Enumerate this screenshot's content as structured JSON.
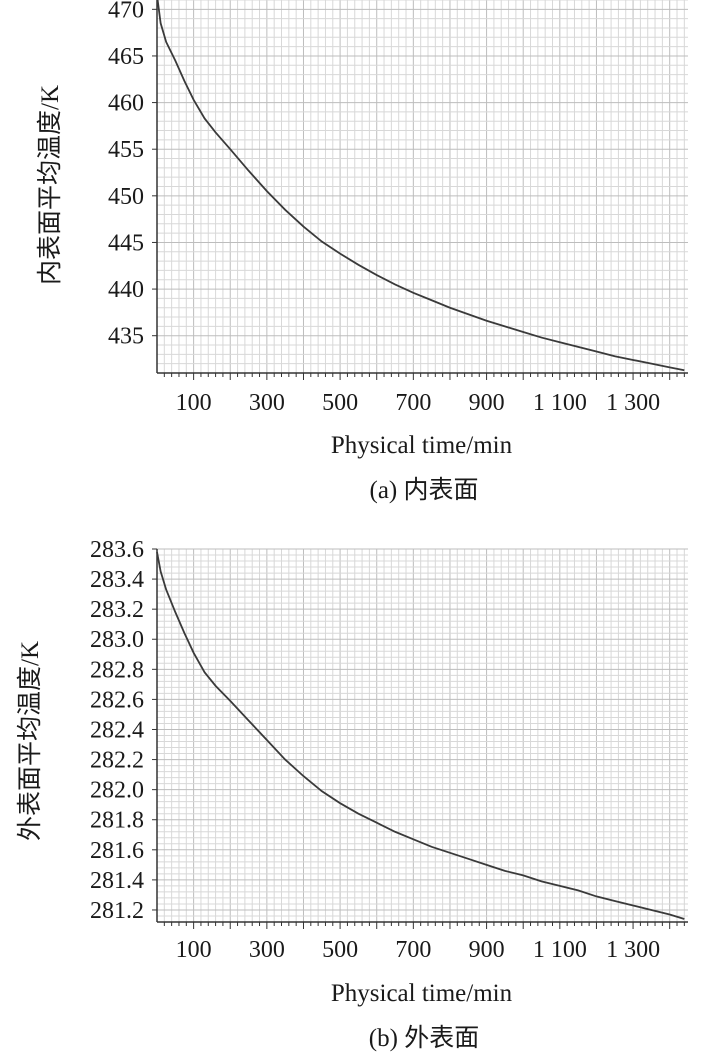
{
  "chart_data": [
    {
      "type": "line",
      "caption": "(a) 内表面",
      "xlabel": "Physical time/min",
      "ylabel": "内表面平均温度/K",
      "xlim": [
        0,
        1450
      ],
      "ylim": [
        431,
        471
      ],
      "x_ticks": [
        100,
        300,
        500,
        700,
        900,
        1100,
        1300
      ],
      "x_tick_labels": [
        "100",
        "300",
        "500",
        "700",
        "900",
        "1 100",
        "1 300"
      ],
      "y_ticks": [
        435,
        440,
        445,
        450,
        455,
        460,
        465,
        470
      ],
      "y_tick_labels": [
        "435",
        "440",
        "445",
        "450",
        "455",
        "460",
        "465",
        "470"
      ],
      "grid": true,
      "series": [
        {
          "x": [
            0,
            10,
            25,
            50,
            75,
            100,
            130,
            160,
            200,
            250,
            300,
            350,
            400,
            450,
            500,
            550,
            600,
            650,
            700,
            750,
            800,
            850,
            900,
            950,
            1000,
            1050,
            1100,
            1150,
            1200,
            1250,
            1300,
            1350,
            1400,
            1440
          ],
          "y": [
            471.5,
            468.5,
            466.5,
            464.5,
            462.3,
            460.3,
            458.3,
            456.8,
            455.0,
            452.7,
            450.5,
            448.5,
            446.7,
            445.1,
            443.8,
            442.6,
            441.5,
            440.5,
            439.6,
            438.8,
            438.0,
            437.3,
            436.6,
            436.0,
            435.4,
            434.8,
            434.3,
            433.8,
            433.3,
            432.8,
            432.4,
            432.0,
            431.6,
            431.3
          ]
        }
      ]
    },
    {
      "type": "line",
      "caption": "(b) 外表面",
      "xlabel": "Physical time/min",
      "ylabel": "外表面平均温度/K",
      "xlim": [
        0,
        1450
      ],
      "ylim": [
        281.12,
        283.6
      ],
      "x_ticks": [
        100,
        300,
        500,
        700,
        900,
        1100,
        1300
      ],
      "x_tick_labels": [
        "100",
        "300",
        "500",
        "700",
        "900",
        "1 100",
        "1 300"
      ],
      "y_ticks": [
        281.2,
        281.4,
        281.6,
        281.8,
        282.0,
        282.2,
        282.4,
        282.6,
        282.8,
        283.0,
        283.2,
        283.4,
        283.6
      ],
      "y_tick_labels": [
        "281.2",
        "281.4",
        "281.6",
        "281.8",
        "282.0",
        "282.2",
        "282.4",
        "282.6",
        "282.8",
        "283.0",
        "283.2",
        "283.4",
        "283.6"
      ],
      "grid": true,
      "series": [
        {
          "x": [
            0,
            10,
            25,
            50,
            75,
            100,
            130,
            160,
            200,
            250,
            300,
            350,
            400,
            450,
            500,
            550,
            600,
            650,
            700,
            750,
            800,
            850,
            900,
            950,
            1000,
            1050,
            1100,
            1150,
            1200,
            1250,
            1300,
            1350,
            1400,
            1440
          ],
          "y": [
            283.58,
            283.45,
            283.33,
            283.18,
            283.04,
            282.91,
            282.78,
            282.69,
            282.59,
            282.46,
            282.33,
            282.2,
            282.09,
            281.99,
            281.91,
            281.84,
            281.78,
            281.72,
            281.67,
            281.62,
            281.58,
            281.54,
            281.5,
            281.46,
            281.43,
            281.39,
            281.36,
            281.33,
            281.29,
            281.26,
            281.23,
            281.2,
            281.17,
            281.14
          ]
        }
      ]
    }
  ]
}
